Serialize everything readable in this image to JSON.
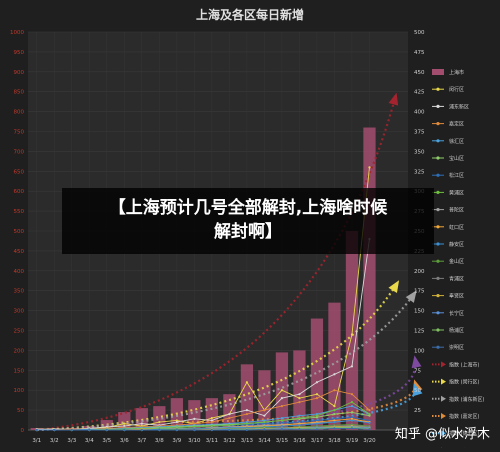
{
  "chart_data": {
    "type": "bar",
    "title": "上海及各区每日新增",
    "categories": [
      "3/1",
      "3/2",
      "3/3",
      "3/4",
      "3/5",
      "3/6",
      "3/7",
      "3/8",
      "3/9",
      "3/10",
      "3/11",
      "3/12",
      "3/13",
      "3/14",
      "3/15",
      "3/16",
      "3/17",
      "3/18",
      "3/19",
      "3/20"
    ],
    "ylim_left": [
      0,
      1000
    ],
    "yticks_left": [
      "0",
      "50",
      "100",
      "150",
      "200",
      "250",
      "300",
      "350",
      "400",
      "450",
      "500",
      "550",
      "600",
      "650",
      "700",
      "750",
      "800",
      "850",
      "900",
      "950",
      "1000"
    ],
    "ylim_right": [
      0,
      500
    ],
    "yticks_right": [
      "0",
      "25",
      "50",
      "75",
      "100",
      "125",
      "150",
      "175",
      "200",
      "225",
      "250",
      "275",
      "300",
      "325",
      "350",
      "375",
      "400",
      "425",
      "450",
      "475",
      "500"
    ],
    "bar_series": {
      "name": "上海市",
      "color": "#a24d6e",
      "values": [
        5,
        5,
        5,
        10,
        25,
        45,
        55,
        60,
        80,
        75,
        80,
        90,
        165,
        150,
        195,
        200,
        280,
        320,
        500,
        760
      ]
    },
    "line_series": [
      {
        "name": "闵行区",
        "color": "#e8d84a",
        "values": [
          1,
          1,
          1,
          2,
          3,
          8,
          5,
          10,
          12,
          8,
          15,
          20,
          60,
          25,
          50,
          40,
          45,
          30,
          120,
          330
        ]
      },
      {
        "name": "浦东新区",
        "color": "#d9d9d9",
        "values": [
          1,
          1,
          1,
          2,
          4,
          5,
          8,
          6,
          10,
          14,
          12,
          20,
          25,
          18,
          40,
          45,
          60,
          70,
          80,
          240
        ]
      },
      {
        "name": "嘉定区",
        "color": "#e08a3c",
        "values": [
          0,
          0,
          1,
          1,
          2,
          3,
          4,
          5,
          6,
          8,
          10,
          15,
          20,
          25,
          30,
          35,
          40,
          50,
          45,
          25
        ]
      },
      {
        "name": "徐汇区",
        "color": "#4aa3df",
        "values": [
          0,
          0,
          0,
          1,
          1,
          2,
          3,
          4,
          5,
          6,
          7,
          8,
          10,
          12,
          15,
          18,
          20,
          25,
          30,
          20
        ]
      },
      {
        "name": "宝山区",
        "color": "#8fcf6a",
        "values": [
          0,
          0,
          0,
          0,
          1,
          1,
          2,
          3,
          4,
          5,
          6,
          7,
          8,
          10,
          12,
          14,
          16,
          20,
          22,
          18
        ]
      },
      {
        "name": "松江区",
        "color": "#2f6fb7",
        "values": [
          0,
          0,
          0,
          0,
          0,
          1,
          1,
          2,
          3,
          4,
          5,
          6,
          7,
          8,
          9,
          10,
          12,
          14,
          16,
          12
        ]
      },
      {
        "name": "黄浦区",
        "color": "#6fbf3f",
        "values": [
          0,
          0,
          0,
          0,
          0,
          1,
          2,
          2,
          3,
          4,
          5,
          6,
          8,
          10,
          12,
          15,
          18,
          25,
          35,
          20
        ]
      },
      {
        "name": "普陀区",
        "color": "#a0a0a0",
        "values": [
          0,
          0,
          0,
          0,
          0,
          0,
          1,
          1,
          2,
          2,
          3,
          4,
          5,
          6,
          7,
          8,
          9,
          10,
          12,
          10
        ]
      },
      {
        "name": "虹口区",
        "color": "#f2a93b",
        "values": [
          0,
          0,
          0,
          0,
          0,
          0,
          1,
          1,
          1,
          2,
          2,
          3,
          4,
          5,
          6,
          8,
          10,
          12,
          14,
          10
        ]
      },
      {
        "name": "静安区",
        "color": "#3a8fd0",
        "values": [
          0,
          0,
          0,
          0,
          0,
          0,
          0,
          1,
          1,
          2,
          2,
          3,
          3,
          4,
          5,
          6,
          8,
          10,
          12,
          9
        ]
      },
      {
        "name": "金山区",
        "color": "#5e9e3a",
        "values": [
          0,
          0,
          0,
          0,
          0,
          0,
          0,
          0,
          1,
          1,
          1,
          2,
          2,
          3,
          3,
          4,
          5,
          6,
          7,
          5
        ]
      },
      {
        "name": "青浦区",
        "color": "#7c7c7c",
        "values": [
          0,
          0,
          0,
          0,
          0,
          0,
          0,
          0,
          0,
          1,
          1,
          1,
          2,
          2,
          3,
          3,
          4,
          5,
          6,
          4
        ]
      },
      {
        "name": "奉贤区",
        "color": "#d1b23a",
        "values": [
          0,
          0,
          0,
          0,
          0,
          0,
          0,
          0,
          0,
          0,
          1,
          1,
          1,
          2,
          2,
          3,
          3,
          4,
          5,
          3
        ]
      },
      {
        "name": "长宁区",
        "color": "#5b8fd6",
        "values": [
          0,
          0,
          0,
          0,
          0,
          0,
          0,
          0,
          0,
          0,
          0,
          1,
          1,
          1,
          2,
          2,
          3,
          3,
          4,
          3
        ]
      },
      {
        "name": "杨浦区",
        "color": "#7fc060",
        "values": [
          0,
          0,
          0,
          0,
          0,
          0,
          0,
          0,
          0,
          0,
          0,
          0,
          1,
          1,
          1,
          2,
          2,
          3,
          3,
          2
        ]
      },
      {
        "name": "崇明区",
        "color": "#3c6da8",
        "values": [
          0,
          0,
          0,
          0,
          0,
          0,
          0,
          0,
          0,
          0,
          0,
          0,
          0,
          1,
          1,
          1,
          1,
          2,
          2,
          1
        ]
      }
    ],
    "trend_series": [
      {
        "name": "指数 (上海市)",
        "color": "#a3242e",
        "start": [
          0,
          0
        ],
        "end": [
          20.5,
          840
        ],
        "axis": "left"
      },
      {
        "name": "指数 (闵行区)",
        "color": "#e8d84a",
        "start": [
          0,
          0
        ],
        "end": [
          20.6,
          370
        ],
        "axis": "left"
      },
      {
        "name": "指数 (浦东新区)",
        "color": "#a0a0a0",
        "start": [
          0,
          0
        ],
        "end": [
          21.6,
          345
        ],
        "axis": "left"
      },
      {
        "name": "指数 (嘉定区)",
        "color": "#e08a3c",
        "start": [
          8,
          10
        ],
        "end": [
          21.6,
          60
        ],
        "axis": "right"
      },
      {
        "name": "指数 (徐汇区)",
        "color": "#4aa3df",
        "start": [
          8,
          5
        ],
        "end": [
          21.6,
          55
        ],
        "axis": "right"
      },
      {
        "name": "指数 (宝山区)",
        "color": "#7d4aa0",
        "start": [
          8,
          5
        ],
        "end": [
          21.6,
          90
        ],
        "axis": "right"
      }
    ],
    "legend_position": "right"
  },
  "banner": {
    "line1": "【上海预计几号全部解封,上海啥时候",
    "line2": "解封啊】"
  },
  "watermark": "知乎 @似水浮木",
  "colors": {
    "background": "#1f1f1f",
    "plot_bg": "#2b2b2b",
    "grid": "#3a3a3a",
    "text": "#d0d0d0"
  }
}
